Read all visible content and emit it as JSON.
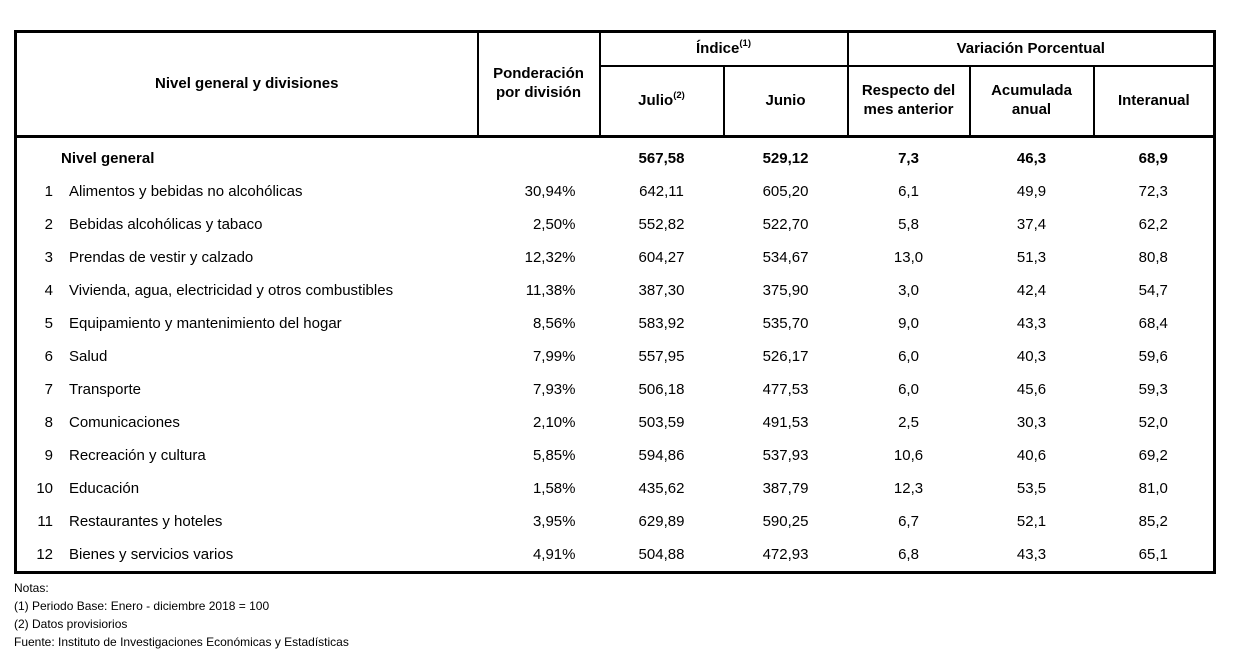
{
  "table": {
    "header": {
      "divisions": "Nivel general y divisiones",
      "weight": "Ponderación por división",
      "index_group_label": "Índice",
      "index_group_sup": "(1)",
      "variation_group_label": "Variación Porcentual",
      "col_julio_label": "Julio",
      "col_julio_sup": "(2)",
      "col_junio": "Junio",
      "col_month_variation": "Respecto del mes anterior",
      "col_accumulated": "Acumulada anual",
      "col_interannual": "Interanual"
    },
    "general_row": {
      "name": "Nivel general",
      "index_jul": "567,58",
      "index_jun": "529,12",
      "var_month": "7,3",
      "var_accum": "46,3",
      "var_yoy": "68,9"
    },
    "rows": [
      {
        "num": "1",
        "name": "Alimentos y bebidas no alcohólicas",
        "weight": "30,94%",
        "index_jul": "642,11",
        "index_jun": "605,20",
        "var_month": "6,1",
        "var_accum": "49,9",
        "var_yoy": "72,3"
      },
      {
        "num": "2",
        "name": "Bebidas alcohólicas y tabaco",
        "weight": "2,50%",
        "index_jul": "552,82",
        "index_jun": "522,70",
        "var_month": "5,8",
        "var_accum": "37,4",
        "var_yoy": "62,2"
      },
      {
        "num": "3",
        "name": "Prendas de vestir y calzado",
        "weight": "12,32%",
        "index_jul": "604,27",
        "index_jun": "534,67",
        "var_month": "13,0",
        "var_accum": "51,3",
        "var_yoy": "80,8"
      },
      {
        "num": "4",
        "name": "Vivienda, agua, electricidad y otros combustibles",
        "weight": "11,38%",
        "index_jul": "387,30",
        "index_jun": "375,90",
        "var_month": "3,0",
        "var_accum": "42,4",
        "var_yoy": "54,7"
      },
      {
        "num": "5",
        "name": "Equipamiento y mantenimiento del hogar",
        "weight": "8,56%",
        "index_jul": "583,92",
        "index_jun": "535,70",
        "var_month": "9,0",
        "var_accum": "43,3",
        "var_yoy": "68,4"
      },
      {
        "num": "6",
        "name": "Salud",
        "weight": "7,99%",
        "index_jul": "557,95",
        "index_jun": "526,17",
        "var_month": "6,0",
        "var_accum": "40,3",
        "var_yoy": "59,6"
      },
      {
        "num": "7",
        "name": "Transporte",
        "weight": "7,93%",
        "index_jul": "506,18",
        "index_jun": "477,53",
        "var_month": "6,0",
        "var_accum": "45,6",
        "var_yoy": "59,3"
      },
      {
        "num": "8",
        "name": "Comunicaciones",
        "weight": "2,10%",
        "index_jul": "503,59",
        "index_jun": "491,53",
        "var_month": "2,5",
        "var_accum": "30,3",
        "var_yoy": "52,0"
      },
      {
        "num": "9",
        "name": "Recreación y cultura",
        "weight": "5,85%",
        "index_jul": "594,86",
        "index_jun": "537,93",
        "var_month": "10,6",
        "var_accum": "40,6",
        "var_yoy": "69,2"
      },
      {
        "num": "10",
        "name": "Educación",
        "weight": "1,58%",
        "index_jul": "435,62",
        "index_jun": "387,79",
        "var_month": "12,3",
        "var_accum": "53,5",
        "var_yoy": "81,0"
      },
      {
        "num": "11",
        "name": "Restaurantes y hoteles",
        "weight": "3,95%",
        "index_jul": "629,89",
        "index_jun": "590,25",
        "var_month": "6,7",
        "var_accum": "52,1",
        "var_yoy": "85,2"
      },
      {
        "num": "12",
        "name": "Bienes y servicios varios",
        "weight": "4,91%",
        "index_jul": "504,88",
        "index_jun": "472,93",
        "var_month": "6,8",
        "var_accum": "43,3",
        "var_yoy": "65,1"
      }
    ]
  },
  "notes": {
    "title": "Notas:",
    "note1": "(1) Periodo Base: Enero - diciembre 2018 = 100",
    "note2": "(2) Datos provisiorios",
    "source": "Fuente: Instituto de Investigaciones Económicas y Estadísticas"
  }
}
